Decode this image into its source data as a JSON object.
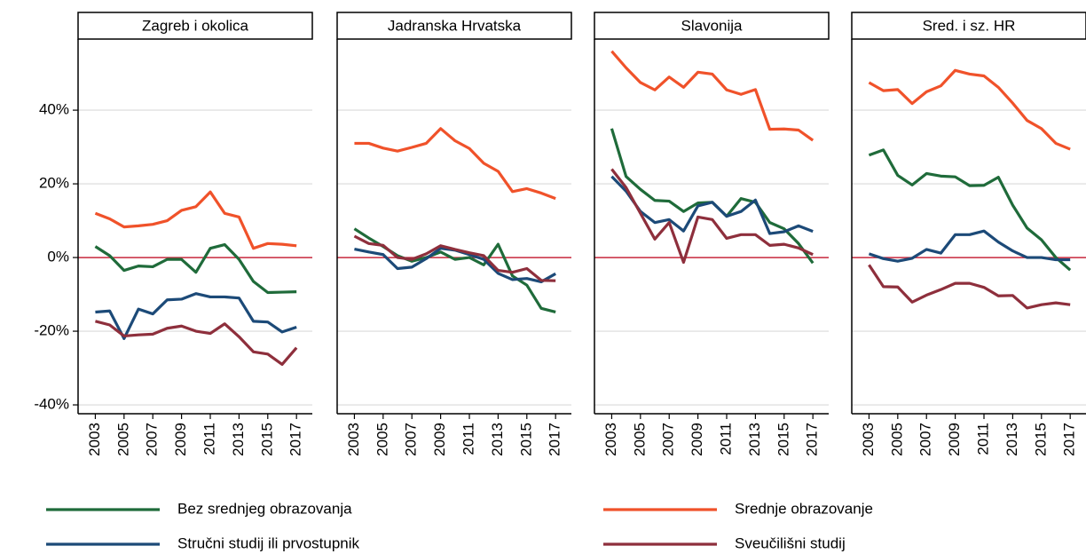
{
  "chart_data": [
    {
      "type": "line",
      "title": "Zagreb i okolica",
      "x": [
        2003,
        2004,
        2005,
        2006,
        2007,
        2008,
        2009,
        2010,
        2011,
        2012,
        2013,
        2014,
        2015,
        2016,
        2017
      ],
      "xlim": [
        2001.8,
        2018.1
      ],
      "xticks": [
        2003,
        2005,
        2007,
        2009,
        2011,
        2013,
        2015,
        2017
      ],
      "ylim": [
        -42.4,
        59.3
      ],
      "yticks": [
        {
          "value": -40,
          "label": "-40%"
        },
        {
          "value": -20,
          "label": "-20%"
        },
        {
          "value": 0,
          "label": "0%"
        },
        {
          "value": 20,
          "label": "20%"
        },
        {
          "value": 40,
          "label": "40%"
        }
      ],
      "grid": true,
      "hline": 0,
      "hline_color": "#c8283c",
      "series": [
        {
          "name": "Bez srednjeg obrazovanja",
          "color": "#1f6b3a",
          "values": [
            3,
            0.5,
            -3.5,
            -2.3,
            -2.5,
            -0.5,
            -0.5,
            -4,
            2.5,
            3.5,
            -0.5,
            -6.5,
            -9.5,
            -9.4,
            -9.3
          ]
        },
        {
          "name": "Srednje obrazovanje",
          "color": "#f0522a",
          "values": [
            12,
            10.5,
            8.3,
            8.6,
            9,
            10,
            12.8,
            13.8,
            17.8,
            12,
            11,
            2.5,
            3.8,
            3.6,
            3.2
          ]
        },
        {
          "name": "Stručni studij ili prvostupnik",
          "color": "#1c4a78",
          "values": [
            -14.8,
            -14.5,
            -22,
            -14,
            -15.3,
            -11.5,
            -11.3,
            -9.8,
            -10.7,
            -10.7,
            -11,
            -17.3,
            -17.5,
            -20.2,
            -18.9
          ]
        },
        {
          "name": "Sveučilišni studij",
          "color": "#8e2f3c",
          "values": [
            -17.3,
            -18.3,
            -21.3,
            -21,
            -20.8,
            -19.2,
            -18.6,
            -20,
            -20.6,
            -18,
            -21.5,
            -25.6,
            -26.2,
            -29,
            -24.5
          ]
        }
      ]
    },
    {
      "type": "line",
      "title": "Jadranska Hrvatska",
      "x": [
        2003,
        2004,
        2005,
        2006,
        2007,
        2008,
        2009,
        2010,
        2011,
        2012,
        2013,
        2014,
        2015,
        2016,
        2017
      ],
      "xlim": [
        2001.8,
        2018.1
      ],
      "xticks": [
        2003,
        2005,
        2007,
        2009,
        2011,
        2013,
        2015,
        2017
      ],
      "ylim": [
        -42.4,
        59.3
      ],
      "yticks": [
        -40,
        -20,
        0,
        20,
        40
      ],
      "grid": true,
      "hline": 0,
      "hline_color": "#c8283c",
      "series": [
        {
          "color": "#1f6b3a",
          "values": [
            7.8,
            5.3,
            3,
            0.5,
            -1,
            0,
            1.5,
            -0.5,
            0,
            -2,
            3.6,
            -5,
            -7.5,
            -13.8,
            -14.8
          ]
        },
        {
          "color": "#f0522a",
          "values": [
            31,
            31,
            29.7,
            28.9,
            29.9,
            31,
            35,
            31.7,
            29.6,
            25.6,
            23.4,
            17.9,
            18.7,
            17.5,
            16
          ]
        },
        {
          "color": "#1c4a78",
          "values": [
            2.3,
            1.5,
            0.8,
            -3,
            -2.6,
            -0.3,
            2.5,
            2,
            0.8,
            -0.5,
            -4.3,
            -6,
            -5.7,
            -6.6,
            -4.4
          ]
        },
        {
          "color": "#8e2f3c",
          "values": [
            5.8,
            3.8,
            3.3,
            0,
            -0.5,
            1,
            3.2,
            2.2,
            1.3,
            0.5,
            -3.5,
            -4,
            -3,
            -6.2,
            -6.3
          ]
        }
      ]
    },
    {
      "type": "line",
      "title": "Slavonija",
      "x": [
        2003,
        2004,
        2005,
        2006,
        2007,
        2008,
        2009,
        2010,
        2011,
        2012,
        2013,
        2014,
        2015,
        2016,
        2017
      ],
      "xlim": [
        2001.8,
        2018.1
      ],
      "xticks": [
        2003,
        2005,
        2007,
        2009,
        2011,
        2013,
        2015,
        2017
      ],
      "ylim": [
        -42.4,
        59.3
      ],
      "yticks": [
        -40,
        -20,
        0,
        20,
        40
      ],
      "grid": true,
      "hline": 0,
      "hline_color": "#c8283c",
      "series": [
        {
          "color": "#1f6b3a",
          "values": [
            35,
            22,
            18.5,
            15.5,
            15.3,
            12.5,
            14.8,
            15,
            11.2,
            16,
            15,
            9.5,
            7.8,
            3.8,
            -1.5
          ]
        },
        {
          "color": "#f0522a",
          "values": [
            56,
            51.5,
            47.5,
            45.5,
            49,
            46.2,
            50.3,
            49.8,
            45.5,
            44.3,
            45.6,
            34.8,
            34.9,
            34.6,
            31.8
          ]
        },
        {
          "color": "#1c4a78",
          "values": [
            22,
            18,
            12.5,
            9.5,
            10.3,
            7.2,
            14,
            15,
            11.2,
            12.5,
            15.6,
            6.5,
            7,
            8.6,
            7.1
          ]
        },
        {
          "color": "#8e2f3c",
          "values": [
            24,
            19,
            12,
            5,
            9.5,
            -1.3,
            11,
            10.3,
            5.2,
            6.2,
            6.2,
            3.3,
            3.6,
            2.6,
            0.8
          ]
        }
      ]
    },
    {
      "type": "line",
      "title": "Sred. i sz. HR",
      "x": [
        2003,
        2004,
        2005,
        2006,
        2007,
        2008,
        2009,
        2010,
        2011,
        2012,
        2013,
        2014,
        2015,
        2016,
        2017
      ],
      "xlim": [
        2001.8,
        2018.1
      ],
      "xticks": [
        2003,
        2005,
        2007,
        2009,
        2011,
        2013,
        2015,
        2017
      ],
      "ylim": [
        -42.4,
        59.3
      ],
      "yticks": [
        -40,
        -20,
        0,
        20,
        40
      ],
      "grid": true,
      "hline": 0,
      "hline_color": "#c8283c",
      "series": [
        {
          "color": "#1f6b3a",
          "values": [
            27.8,
            29.2,
            22.3,
            19.7,
            22.8,
            22.1,
            21.9,
            19.5,
            19.6,
            21.8,
            14.2,
            8,
            4.8,
            0,
            -3.4
          ]
        },
        {
          "color": "#f0522a",
          "values": [
            47.5,
            45.3,
            45.6,
            41.8,
            45,
            46.6,
            50.8,
            49.8,
            49.3,
            46.2,
            41.9,
            37.2,
            35,
            31,
            29.4
          ]
        },
        {
          "color": "#1c4a78",
          "values": [
            1,
            -0.3,
            -1,
            -0.2,
            2.2,
            1.2,
            6.2,
            6.2,
            7.2,
            4.2,
            1.8,
            0,
            0,
            -0.6,
            -0.6
          ]
        },
        {
          "color": "#8e2f3c",
          "values": [
            -2,
            -7.9,
            -8,
            -12.1,
            -10.2,
            -8.7,
            -7,
            -7,
            -8.1,
            -10.4,
            -10.3,
            -13.7,
            -12.8,
            -12.3,
            -12.8
          ]
        }
      ]
    }
  ]
}
